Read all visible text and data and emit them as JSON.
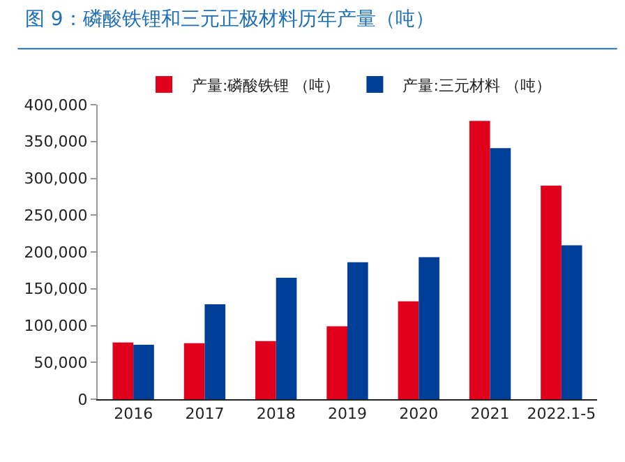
{
  "chart_data": {
    "type": "bar",
    "title": "图 9：磷酸铁锂和三元正极材料历年产量（吨）",
    "categories": [
      "2016",
      "2017",
      "2018",
      "2019",
      "2020",
      "2021",
      "2022.1-5"
    ],
    "series": [
      {
        "name": "产量:磷酸铁锂 （吨）",
        "color": "#e0001b",
        "values": [
          77000,
          76000,
          79000,
          99000,
          133000,
          378000,
          290000
        ]
      },
      {
        "name": "产量:三元材料 （吨）",
        "color": "#003f98",
        "values": [
          74000,
          129000,
          165000,
          186000,
          193000,
          341000,
          209000
        ]
      }
    ],
    "ylim": [
      0,
      400000
    ],
    "yticks": [
      {
        "value": 0,
        "label": "0"
      },
      {
        "value": 50000,
        "label": "50,000"
      },
      {
        "value": 100000,
        "label": "100,000"
      },
      {
        "value": 150000,
        "label": "150,000"
      },
      {
        "value": 200000,
        "label": "200,000"
      },
      {
        "value": 250000,
        "label": "250,000"
      },
      {
        "value": 300000,
        "label": "300,000"
      },
      {
        "value": 350000,
        "label": "350,000"
      },
      {
        "value": 400000,
        "label": "400,000"
      }
    ],
    "legend": "top"
  }
}
